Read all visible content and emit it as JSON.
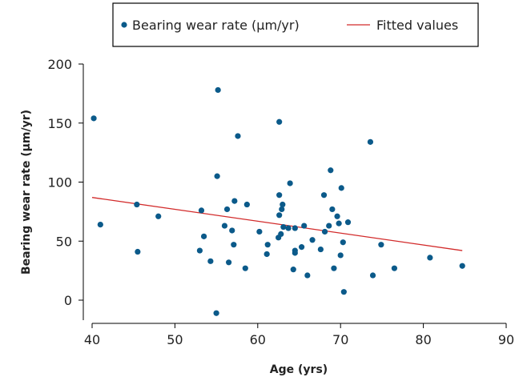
{
  "chart_data": {
    "type": "scatter",
    "xlabel": "Age (yrs)",
    "ylabel": "Bearing wear rate (µm/yr)",
    "xlim": [
      40,
      90
    ],
    "ylim": [
      -15,
      200
    ],
    "xticks": [
      40,
      50,
      60,
      70,
      80,
      90
    ],
    "yticks": [
      0,
      50,
      100,
      150,
      200
    ],
    "grid": false,
    "legend_position": "top",
    "series": [
      {
        "name": "Bearing wear rate (µm/yr)",
        "kind": "scatter",
        "color": "#0b5a8a",
        "points": [
          [
            40.2,
            154
          ],
          [
            41,
            64
          ],
          [
            45.4,
            81
          ],
          [
            45.5,
            41
          ],
          [
            48,
            71
          ],
          [
            53,
            42
          ],
          [
            53.2,
            76
          ],
          [
            53.5,
            54
          ],
          [
            54.3,
            33
          ],
          [
            55,
            -11
          ],
          [
            55.1,
            105
          ],
          [
            55.2,
            178
          ],
          [
            56,
            63
          ],
          [
            56.3,
            77
          ],
          [
            56.5,
            32
          ],
          [
            56.9,
            59
          ],
          [
            57.1,
            47
          ],
          [
            57.2,
            84
          ],
          [
            57.6,
            139
          ],
          [
            58.5,
            27
          ],
          [
            58.7,
            81
          ],
          [
            60.2,
            58
          ],
          [
            61.1,
            39
          ],
          [
            61.2,
            47
          ],
          [
            62.5,
            53
          ],
          [
            62.6,
            151
          ],
          [
            62.6,
            72
          ],
          [
            62.6,
            89
          ],
          [
            62.8,
            56
          ],
          [
            62.9,
            77
          ],
          [
            63,
            81
          ],
          [
            63.1,
            62
          ],
          [
            63.7,
            61
          ],
          [
            63.9,
            99
          ],
          [
            64.3,
            26
          ],
          [
            64.5,
            42
          ],
          [
            64.5,
            61
          ],
          [
            64.5,
            40
          ],
          [
            65.3,
            45
          ],
          [
            65.6,
            63
          ],
          [
            66,
            21
          ],
          [
            66.6,
            51
          ],
          [
            67.6,
            43
          ],
          [
            68,
            89
          ],
          [
            68.1,
            58
          ],
          [
            68.6,
            63
          ],
          [
            68.8,
            110
          ],
          [
            69,
            77
          ],
          [
            69.2,
            27
          ],
          [
            69.6,
            71
          ],
          [
            69.8,
            65
          ],
          [
            70,
            38
          ],
          [
            70.1,
            95
          ],
          [
            70.3,
            49
          ],
          [
            70.4,
            7
          ],
          [
            70.9,
            66
          ],
          [
            73.6,
            134
          ],
          [
            73.9,
            21
          ],
          [
            74.9,
            47
          ],
          [
            76.5,
            27
          ],
          [
            80.8,
            36
          ],
          [
            84.7,
            29
          ]
        ]
      },
      {
        "name": "Fitted values",
        "kind": "line",
        "color": "#d22a2a",
        "points": [
          [
            40,
            87
          ],
          [
            84.7,
            42
          ]
        ]
      }
    ]
  }
}
